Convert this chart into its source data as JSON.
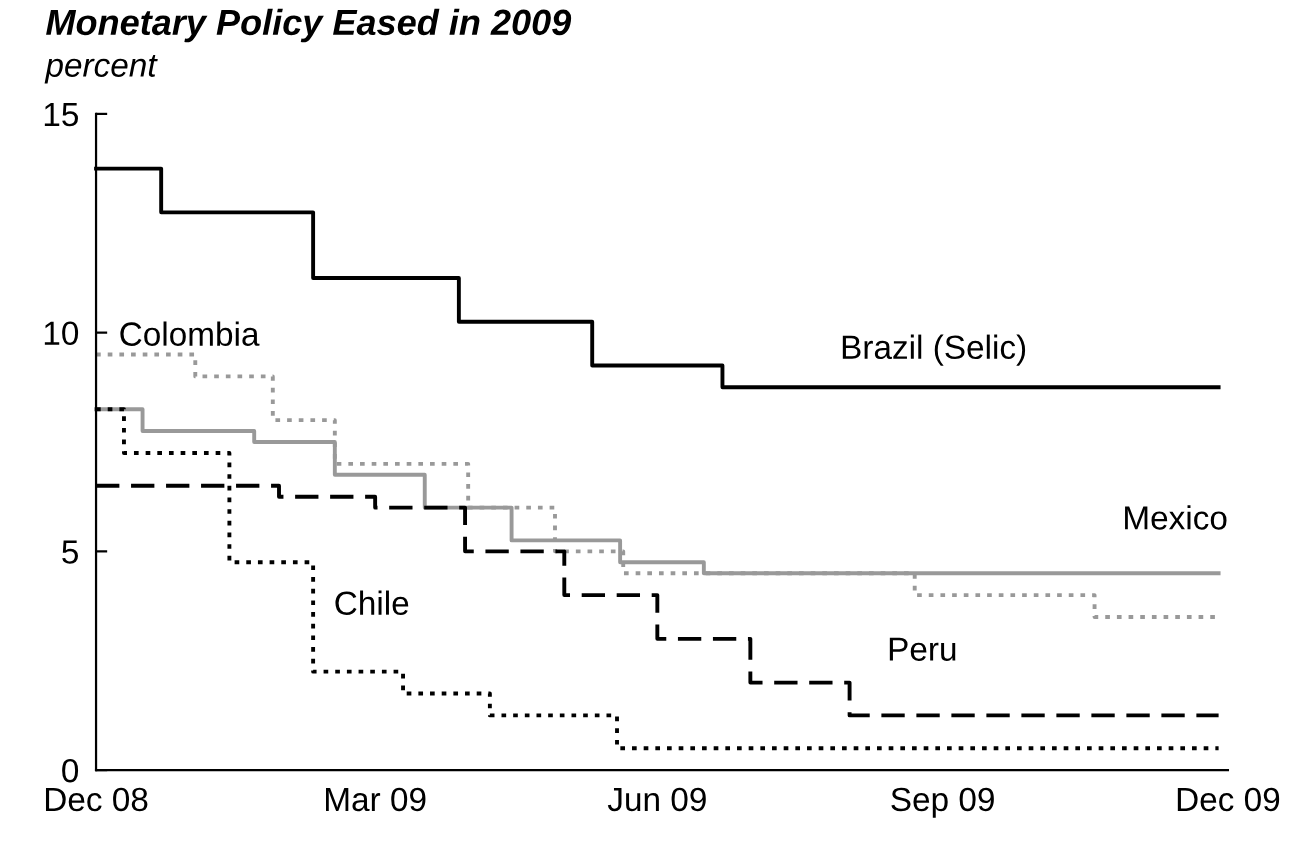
{
  "chart_data": {
    "type": "step",
    "title": "Monetary Policy Eased in 2009",
    "subtitle": "percent",
    "xlim": [
      "2008-12-31",
      "2009-12-31"
    ],
    "xticks": [
      {
        "value": "2008-12-31",
        "label": "Dec 08"
      },
      {
        "value": "2009-03-31",
        "label": "Mar 09"
      },
      {
        "value": "2009-06-30",
        "label": "Jun 09"
      },
      {
        "value": "2009-09-30",
        "label": "Sep 09"
      },
      {
        "value": "2009-12-31",
        "label": "Dec 09"
      }
    ],
    "ylim": [
      0,
      15
    ],
    "yticks": [
      0,
      5,
      10,
      15
    ],
    "grid": false,
    "legend": false,
    "series": [
      {
        "name": "Brazil (Selic)",
        "color": "#000000",
        "line_style": "solid",
        "x": [
          "2008-12-31",
          "2009-01-21",
          "2009-03-11",
          "2009-04-27",
          "2009-06-09",
          "2009-07-21",
          "2009-12-28"
        ],
        "values": [
          13.75,
          12.75,
          11.25,
          10.25,
          9.25,
          8.75,
          8.75
        ]
      },
      {
        "name": "Colombia",
        "color": "#999999",
        "line_style": "dotted",
        "x": [
          "2008-12-31",
          "2009-02-01",
          "2009-02-26",
          "2009-03-18",
          "2009-04-30",
          "2009-05-28",
          "2009-06-19",
          "2009-09-21",
          "2009-11-18",
          "2009-12-28"
        ],
        "values": [
          9.5,
          9.0,
          8.0,
          7.0,
          6.0,
          5.0,
          4.5,
          4.0,
          3.5,
          3.5
        ]
      },
      {
        "name": "Mexico",
        "color": "#999999",
        "line_style": "solid",
        "x": [
          "2008-12-31",
          "2009-01-15",
          "2009-02-20",
          "2009-03-18",
          "2009-04-16",
          "2009-05-14",
          "2009-06-18",
          "2009-07-15",
          "2009-12-28"
        ],
        "values": [
          8.25,
          7.75,
          7.5,
          6.75,
          6.0,
          5.25,
          4.75,
          4.5,
          4.5
        ]
      },
      {
        "name": "Peru",
        "color": "#000000",
        "line_style": "dashed",
        "x": [
          "2008-12-31",
          "2009-02-28",
          "2009-03-31",
          "2009-04-29",
          "2009-05-31",
          "2009-06-30",
          "2009-07-30",
          "2009-08-31",
          "2009-12-28"
        ],
        "values": [
          6.5,
          6.25,
          6.0,
          5.0,
          4.0,
          3.0,
          2.0,
          1.25,
          1.25
        ]
      },
      {
        "name": "Chile",
        "color": "#000000",
        "line_style": "dotted",
        "x": [
          "2008-12-31",
          "2009-01-09",
          "2009-02-12",
          "2009-03-11",
          "2009-04-09",
          "2009-05-07",
          "2009-06-17",
          "2009-12-28"
        ],
        "values": [
          8.25,
          7.25,
          4.75,
          2.25,
          1.75,
          1.25,
          0.5,
          0.5
        ]
      }
    ]
  }
}
